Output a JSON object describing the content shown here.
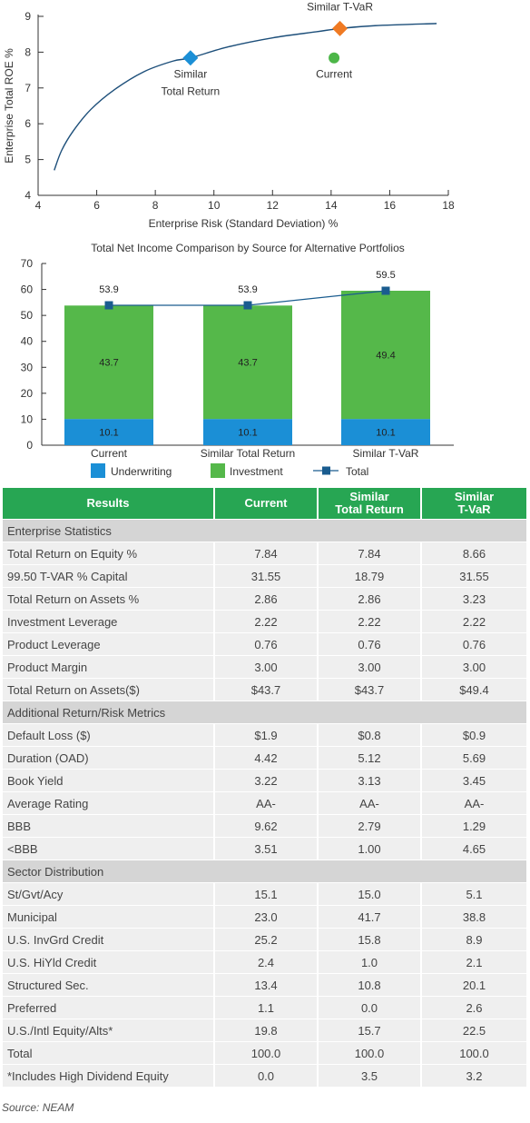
{
  "chart_data": [
    {
      "type": "scatter",
      "title": "",
      "xlabel": "Enterprise Risk (Standard Deviation) %",
      "ylabel": "Enterprise Total ROE %",
      "xlim": [
        4,
        18
      ],
      "ylim": [
        4,
        9
      ],
      "xticks": [
        "4",
        "6",
        "8",
        "10",
        "12",
        "14",
        "16",
        "18"
      ],
      "yticks": [
        "4",
        "5",
        "6",
        "7",
        "8",
        "9"
      ],
      "frontier_curve": [
        {
          "x": 4.55,
          "y": 4.7
        },
        {
          "x": 4.8,
          "y": 5.25
        },
        {
          "x": 5.2,
          "y": 5.8
        },
        {
          "x": 5.8,
          "y": 6.4
        },
        {
          "x": 6.6,
          "y": 6.95
        },
        {
          "x": 7.6,
          "y": 7.45
        },
        {
          "x": 8.6,
          "y": 7.75
        },
        {
          "x": 9.2,
          "y": 7.84
        },
        {
          "x": 10.5,
          "y": 8.15
        },
        {
          "x": 12.0,
          "y": 8.4
        },
        {
          "x": 13.5,
          "y": 8.57
        },
        {
          "x": 14.3,
          "y": 8.66
        },
        {
          "x": 15.5,
          "y": 8.74
        },
        {
          "x": 17.6,
          "y": 8.8
        }
      ],
      "points": [
        {
          "label_line1": "Similar",
          "label_line2": "Total Return",
          "x": 9.2,
          "y": 7.84,
          "marker": "diamond",
          "color": "#1b8fd6"
        },
        {
          "label_line1": "Similar T-VaR",
          "label_line2": "",
          "x": 14.3,
          "y": 8.66,
          "marker": "diamond",
          "color": "#ef7a23"
        },
        {
          "label_line1": "Current",
          "label_line2": "",
          "x": 14.1,
          "y": 7.84,
          "marker": "circle",
          "color": "#4cb648"
        }
      ],
      "grid": false
    },
    {
      "type": "bar",
      "title": "Total Net Income Comparison by Source for Alternative Portfolios",
      "categories": [
        "Current",
        "Similar Total Return",
        "Similar T-VaR"
      ],
      "series": [
        {
          "name": "Underwriting",
          "values": [
            10.1,
            10.1,
            10.1
          ],
          "color": "#1b8fd6"
        },
        {
          "name": "Investment",
          "values": [
            43.7,
            43.7,
            49.4
          ],
          "color": "#55b84a"
        },
        {
          "name": "Total",
          "values": [
            53.9,
            53.9,
            59.5
          ],
          "color": "#1a5c8f",
          "type": "line"
        }
      ],
      "stacked": true,
      "ylim": [
        0,
        70
      ],
      "yticks": [
        "0",
        "10",
        "20",
        "30",
        "40",
        "50",
        "60",
        "70"
      ],
      "legend": "bottom",
      "grid": false
    }
  ],
  "table": {
    "headers": [
      "Results",
      "Current",
      "Similar Total Return",
      "Similar T-VaR"
    ],
    "header_lines": [
      [
        "Results"
      ],
      [
        "Current"
      ],
      [
        "Similar",
        "Total Return"
      ],
      [
        "Similar",
        "T-VaR"
      ]
    ],
    "sections": [
      {
        "title": "Enterprise Statistics",
        "rows": [
          [
            "Total Return on Equity %",
            "7.84",
            "7.84",
            "8.66"
          ],
          [
            "99.50 T-VAR % Capital",
            "31.55",
            "18.79",
            "31.55"
          ],
          [
            "Total Return on Assets %",
            "2.86",
            "2.86",
            "3.23"
          ],
          [
            "Investment Leverage",
            "2.22",
            "2.22",
            "2.22"
          ],
          [
            "Product Leverage",
            "0.76",
            "0.76",
            "0.76"
          ],
          [
            "Product Margin",
            "3.00",
            "3.00",
            "3.00"
          ],
          [
            "Total Return on Assets($)",
            "$43.7",
            "$43.7",
            "$49.4"
          ]
        ]
      },
      {
        "title": "Additional Return/Risk Metrics",
        "rows": [
          [
            "Default Loss ($)",
            "$1.9",
            "$0.8",
            "$0.9"
          ],
          [
            "Duration (OAD)",
            "4.42",
            "5.12",
            "5.69"
          ],
          [
            "Book Yield",
            "3.22",
            "3.13",
            "3.45"
          ],
          [
            "Average Rating",
            "AA-",
            "AA-",
            "AA-"
          ],
          [
            "BBB",
            "9.62",
            "2.79",
            "1.29"
          ],
          [
            "<BBB",
            "3.51",
            "1.00",
            "4.65"
          ]
        ]
      },
      {
        "title": "Sector Distribution",
        "rows": [
          [
            "St/Gvt/Acy",
            "15.1",
            "15.0",
            "5.1"
          ],
          [
            "Municipal",
            "23.0",
            "41.7",
            "38.8"
          ],
          [
            "U.S. InvGrd Credit",
            "25.2",
            "15.8",
            "8.9"
          ],
          [
            "U.S. HiYld Credit",
            "2.4",
            "1.0",
            "2.1"
          ],
          [
            "Structured Sec.",
            "13.4",
            "10.8",
            "20.1"
          ],
          [
            "Preferred",
            "1.1",
            "0.0",
            "2.6"
          ],
          [
            "U.S./Intl Equity/Alts*",
            "19.8",
            "15.7",
            "22.5"
          ],
          [
            "Total",
            "100.0",
            "100.0",
            "100.0"
          ],
          [
            "*Includes High Dividend Equity",
            "0.0",
            "3.5",
            "3.2"
          ]
        ]
      }
    ],
    "colors": {
      "header_bg": "#27a653",
      "row_bg": "#efefef",
      "section_bg": "#d5d5d5"
    }
  },
  "source_note": "Source: NEAM"
}
